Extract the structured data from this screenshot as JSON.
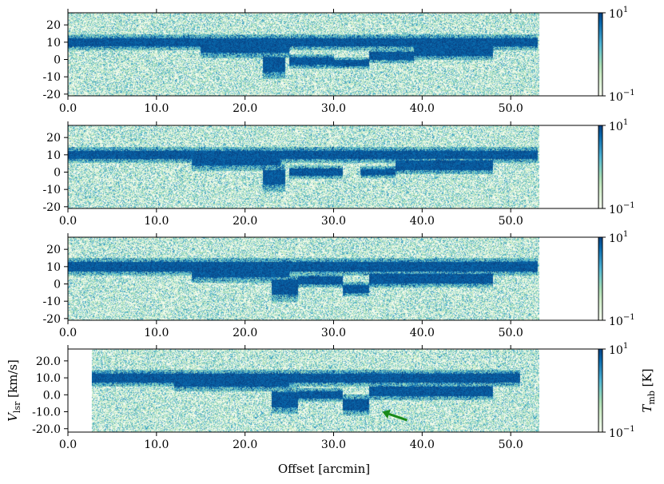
{
  "chart_data": {
    "type": "heatmap",
    "description_panels": 4,
    "panels": [
      {
        "x_range": [
          0,
          60
        ],
        "y_range": [
          -21,
          27
        ],
        "data_x_range": [
          0,
          53.2
        ],
        "x_ticks": [
          0,
          10,
          20,
          30,
          40,
          50
        ],
        "x_tick_labels": [
          "0.0",
          "10.0",
          "20.0",
          "30.0",
          "40.0",
          "50.0"
        ],
        "y_ticks": [
          20,
          10,
          0,
          -10,
          -20
        ],
        "y_tick_labels": [
          "20",
          "10",
          "0",
          "-10",
          "-20"
        ],
        "ylabel": "",
        "xlabel": "",
        "features": [
          {
            "x0": 0,
            "x1": 53,
            "v": 10,
            "width": 2.2
          },
          {
            "x0": 15,
            "x1": 25,
            "v": 7,
            "width": 3
          },
          {
            "x0": 22,
            "x1": 24.5,
            "v": -3,
            "width": 4
          },
          {
            "x0": 25,
            "x1": 30,
            "v": -1,
            "width": 2
          },
          {
            "x0": 30,
            "x1": 34,
            "v": -2,
            "width": 1.6
          },
          {
            "x0": 34,
            "x1": 39,
            "v": 2,
            "width": 2
          },
          {
            "x0": 39,
            "x1": 48,
            "v": 5,
            "width": 2.5
          }
        ]
      },
      {
        "x_range": [
          0,
          60
        ],
        "y_range": [
          -21,
          27
        ],
        "data_x_range": [
          0,
          53.2
        ],
        "x_ticks": [
          0,
          10,
          20,
          30,
          40,
          50
        ],
        "x_tick_labels": [
          "0.0",
          "10.0",
          "20.0",
          "30.0",
          "40.0",
          "50.0"
        ],
        "y_ticks": [
          20,
          10,
          0,
          -10,
          -20
        ],
        "y_tick_labels": [
          "20",
          "10",
          "0",
          "-10",
          "-20"
        ],
        "ylabel": "",
        "xlabel": "",
        "features": [
          {
            "x0": 0,
            "x1": 53,
            "v": 10,
            "width": 2.2
          },
          {
            "x0": 14,
            "x1": 24,
            "v": 7,
            "width": 3
          },
          {
            "x0": 22,
            "x1": 24.5,
            "v": -3,
            "width": 4
          },
          {
            "x0": 25,
            "x1": 31,
            "v": 0,
            "width": 1.8
          },
          {
            "x0": 33,
            "x1": 37,
            "v": 0,
            "width": 1.6
          },
          {
            "x0": 37,
            "x1": 48,
            "v": 4,
            "width": 2.5
          }
        ]
      },
      {
        "x_range": [
          0,
          60
        ],
        "y_range": [
          -21,
          27
        ],
        "data_x_range": [
          0,
          53.2
        ],
        "x_ticks": [
          0,
          10,
          20,
          30,
          40,
          50
        ],
        "x_tick_labels": [
          "0.0",
          "10.0",
          "20.0",
          "30.0",
          "40.0",
          "50.0"
        ],
        "y_ticks": [
          20,
          10,
          0,
          -10,
          -20
        ],
        "y_tick_labels": [
          "20",
          "10",
          "0",
          "-10",
          "-20"
        ],
        "ylabel": "",
        "xlabel": "",
        "features": [
          {
            "x0": 0,
            "x1": 53,
            "v": 10,
            "width": 2.4
          },
          {
            "x0": 14,
            "x1": 25,
            "v": 7,
            "width": 3
          },
          {
            "x0": 23,
            "x1": 26,
            "v": -2,
            "width": 4
          },
          {
            "x0": 26,
            "x1": 31,
            "v": 2,
            "width": 2
          },
          {
            "x0": 31,
            "x1": 34,
            "v": -3,
            "width": 2
          },
          {
            "x0": 34,
            "x1": 48,
            "v": 3,
            "width": 2.5
          }
        ]
      },
      {
        "x_range": [
          0,
          60
        ],
        "y_range": [
          -22,
          27
        ],
        "data_x_range": [
          2.7,
          53.2
        ],
        "x_ticks": [
          0,
          10,
          20,
          30,
          40,
          50
        ],
        "x_tick_labels": [
          "0.0",
          "10.0",
          "20.0",
          "30.0",
          "40.0",
          "50.0"
        ],
        "y_ticks": [
          20,
          10,
          0,
          -10,
          -20
        ],
        "y_tick_labels": [
          "20.0",
          "10.0",
          "0.0",
          "-10.0",
          "-20.0"
        ],
        "ylabel": "V_lsr [km/s]",
        "xlabel": "Offset [arcmin]",
        "features": [
          {
            "x0": 2.7,
            "x1": 51,
            "v": 10,
            "width": 2.4
          },
          {
            "x0": 12,
            "x1": 25,
            "v": 8,
            "width": 3
          },
          {
            "x0": 23,
            "x1": 26,
            "v": -3,
            "width": 4
          },
          {
            "x0": 26,
            "x1": 31,
            "v": 0,
            "width": 2
          },
          {
            "x0": 31,
            "x1": 34,
            "v": -6,
            "width": 3
          },
          {
            "x0": 34,
            "x1": 48,
            "v": 2,
            "width": 2.5
          }
        ],
        "arrow": {
          "from": [
            38.3,
            -15
          ],
          "to": [
            35.5,
            -10
          ],
          "color": "#1a8a1a"
        }
      }
    ],
    "colorbar": {
      "scale": "log",
      "range": [
        0.1,
        10
      ],
      "label": "T_mb [K]",
      "ticks": [
        {
          "base": "10",
          "exp": "1"
        },
        {
          "base": "10",
          "exp": "−1"
        }
      ],
      "colors": [
        "#f7fcf0",
        "#e0f3db",
        "#ccebc5",
        "#a8ddb5",
        "#7bccc4",
        "#4eb3d3",
        "#2b8cbe",
        "#0868ac",
        "#084081"
      ]
    }
  }
}
